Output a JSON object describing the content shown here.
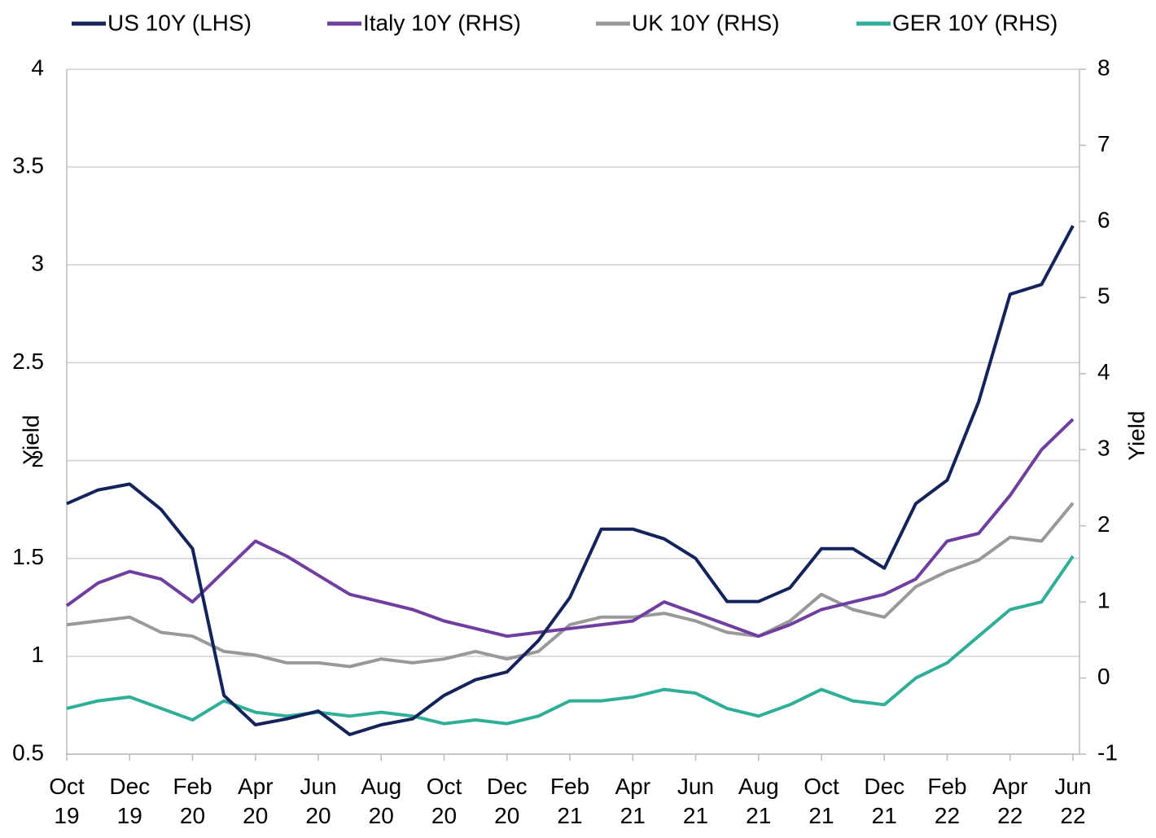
{
  "chart_data": {
    "type": "line",
    "x": [
      "2019-10",
      "2019-11",
      "2019-12",
      "2020-01",
      "2020-02",
      "2020-03",
      "2020-04",
      "2020-05",
      "2020-06",
      "2020-07",
      "2020-08",
      "2020-09",
      "2020-10",
      "2020-11",
      "2020-12",
      "2021-01",
      "2021-02",
      "2021-03",
      "2021-04",
      "2021-05",
      "2021-06",
      "2021-07",
      "2021-08",
      "2021-09",
      "2021-10",
      "2021-11",
      "2021-12",
      "2022-01",
      "2022-02",
      "2022-03",
      "2022-04",
      "2022-05",
      "2022-06"
    ],
    "xticks": [
      {
        "value": "2019-10",
        "label": "Oct 19"
      },
      {
        "value": "2019-12",
        "label": "Dec 19"
      },
      {
        "value": "2020-02",
        "label": "Feb 20"
      },
      {
        "value": "2020-04",
        "label": "Apr 20"
      },
      {
        "value": "2020-06",
        "label": "Jun 20"
      },
      {
        "value": "2020-08",
        "label": "Aug 20"
      },
      {
        "value": "2020-10",
        "label": "Oct 20"
      },
      {
        "value": "2020-12",
        "label": "Dec 20"
      },
      {
        "value": "2021-02",
        "label": "Feb 21"
      },
      {
        "value": "2021-04",
        "label": "Apr 21"
      },
      {
        "value": "2021-06",
        "label": "Jun 21"
      },
      {
        "value": "2021-08",
        "label": "Aug 21"
      },
      {
        "value": "2021-10",
        "label": "Oct 21"
      },
      {
        "value": "2021-12",
        "label": "Dec 21"
      },
      {
        "value": "2022-02",
        "label": "Feb 22"
      },
      {
        "value": "2022-04",
        "label": "Apr 22"
      },
      {
        "value": "2022-06",
        "label": "Jun 22"
      }
    ],
    "ylabel": "Yield",
    "y2label": "Yield",
    "ylim": [
      0.5,
      4
    ],
    "yticks": [
      0.5,
      1,
      1.5,
      2,
      2.5,
      3,
      3.5,
      4
    ],
    "y2lim": [
      -1,
      8
    ],
    "y2ticks": [
      -1,
      0,
      1,
      2,
      3,
      4,
      5,
      6,
      7,
      8
    ],
    "grid": true,
    "legend": "top",
    "series": [
      {
        "name": "US 10Y (LHS)",
        "color": "#14245a",
        "axis": "y",
        "values": [
          1.78,
          1.85,
          1.88,
          1.75,
          1.55,
          0.8,
          0.65,
          0.68,
          0.72,
          0.6,
          0.65,
          0.68,
          0.8,
          0.88,
          0.92,
          1.08,
          1.3,
          1.65,
          1.65,
          1.6,
          1.5,
          1.28,
          1.28,
          1.35,
          1.55,
          1.55,
          1.45,
          1.78,
          1.9,
          2.3,
          2.85,
          2.9,
          3.2
        ]
      },
      {
        "name": "Italy 10Y (RHS)",
        "color": "#6f3fa0",
        "axis": "y2",
        "values": [
          0.95,
          1.25,
          1.4,
          1.3,
          1.0,
          1.4,
          1.8,
          1.6,
          1.35,
          1.1,
          1.0,
          0.9,
          0.75,
          0.65,
          0.55,
          0.6,
          0.65,
          0.7,
          0.75,
          1.0,
          0.85,
          0.7,
          0.55,
          0.7,
          0.9,
          1.0,
          1.1,
          1.3,
          1.8,
          1.9,
          2.4,
          3.0,
          3.4
        ]
      },
      {
        "name": "UK 10Y (RHS)",
        "color": "#999999",
        "axis": "y2",
        "values": [
          0.7,
          0.75,
          0.8,
          0.6,
          0.55,
          0.35,
          0.3,
          0.2,
          0.2,
          0.15,
          0.25,
          0.2,
          0.25,
          0.35,
          0.25,
          0.35,
          0.7,
          0.8,
          0.8,
          0.85,
          0.75,
          0.6,
          0.55,
          0.75,
          1.1,
          0.9,
          0.8,
          1.2,
          1.4,
          1.55,
          1.85,
          1.8,
          2.3
        ]
      },
      {
        "name": "GER 10Y (RHS)",
        "color": "#2fae98",
        "axis": "y2",
        "values": [
          -0.4,
          -0.3,
          -0.25,
          -0.4,
          -0.55,
          -0.3,
          -0.45,
          -0.5,
          -0.45,
          -0.5,
          -0.45,
          -0.5,
          -0.6,
          -0.55,
          -0.6,
          -0.5,
          -0.3,
          -0.3,
          -0.25,
          -0.15,
          -0.2,
          -0.4,
          -0.5,
          -0.35,
          -0.15,
          -0.3,
          -0.35,
          0.0,
          0.2,
          0.55,
          0.9,
          1.0,
          1.6
        ]
      }
    ]
  }
}
